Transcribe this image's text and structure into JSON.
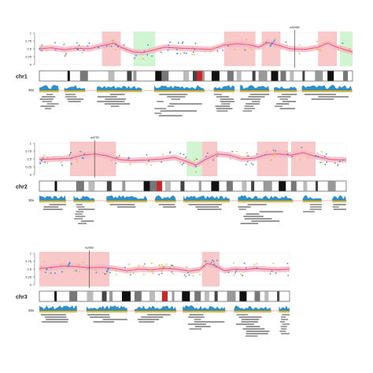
{
  "chart_data": [
    {
      "type": "line",
      "chromosome": "chr1",
      "ylim": [
        0,
        1
      ],
      "y_ticks": [
        "0",
        "0.25",
        "0.5",
        "0.75",
        "1"
      ],
      "marker": {
        "label": "rs50980",
        "x": 0.815
      },
      "gain_regions": [
        [
          0.2,
          0.26
        ],
        [
          0.59,
          0.69
        ],
        [
          0.71,
          0.77
        ],
        [
          0.89,
          0.95
        ]
      ],
      "loss_regions": [
        [
          0.3,
          0.37
        ],
        [
          0.96,
          1.0
        ]
      ],
      "trend": [
        [
          0.0,
          0.5
        ],
        [
          0.04,
          0.53
        ],
        [
          0.08,
          0.47
        ],
        [
          0.12,
          0.52
        ],
        [
          0.16,
          0.5
        ],
        [
          0.2,
          0.6
        ],
        [
          0.24,
          0.68
        ],
        [
          0.26,
          0.55
        ],
        [
          0.3,
          0.4
        ],
        [
          0.33,
          0.38
        ],
        [
          0.36,
          0.45
        ],
        [
          0.4,
          0.55
        ],
        [
          0.45,
          0.52
        ],
        [
          0.5,
          0.5
        ],
        [
          0.55,
          0.48
        ],
        [
          0.59,
          0.62
        ],
        [
          0.63,
          0.66
        ],
        [
          0.67,
          0.63
        ],
        [
          0.7,
          0.55
        ],
        [
          0.73,
          0.7
        ],
        [
          0.76,
          0.62
        ],
        [
          0.8,
          0.5
        ],
        [
          0.85,
          0.48
        ],
        [
          0.89,
          0.55
        ],
        [
          0.92,
          0.68
        ],
        [
          0.95,
          0.55
        ],
        [
          1.0,
          0.4
        ]
      ],
      "cytoband_x": [
        0.09,
        0.13,
        0.22,
        0.28,
        0.3,
        0.37,
        0.39,
        0.46,
        0.49,
        0.52,
        0.55,
        0.6,
        0.63,
        0.68,
        0.7,
        0.74,
        0.77,
        0.8,
        0.84,
        0.88,
        0.92,
        0.97
      ],
      "centromere": 0.51,
      "coverage_label": "30x"
    },
    {
      "type": "line",
      "chromosome": "chr2",
      "ylim": [
        0,
        1
      ],
      "y_ticks": [
        "0",
        "0.25",
        "0.5",
        "0.75",
        "1"
      ],
      "marker": {
        "label": "rs6735",
        "x": 0.18
      },
      "gain_regions": [
        [
          0.1,
          0.25
        ],
        [
          0.53,
          0.58
        ],
        [
          0.71,
          0.81
        ],
        [
          0.82,
          0.9
        ]
      ],
      "loss_regions": [
        [
          0.48,
          0.53
        ]
      ],
      "trend": [
        [
          0.0,
          0.48
        ],
        [
          0.05,
          0.5
        ],
        [
          0.1,
          0.52
        ],
        [
          0.14,
          0.62
        ],
        [
          0.18,
          0.66
        ],
        [
          0.22,
          0.6
        ],
        [
          0.26,
          0.48
        ],
        [
          0.3,
          0.45
        ],
        [
          0.35,
          0.47
        ],
        [
          0.4,
          0.5
        ],
        [
          0.44,
          0.55
        ],
        [
          0.48,
          0.42
        ],
        [
          0.51,
          0.3
        ],
        [
          0.54,
          0.48
        ],
        [
          0.58,
          0.66
        ],
        [
          0.62,
          0.62
        ],
        [
          0.66,
          0.5
        ],
        [
          0.7,
          0.52
        ],
        [
          0.74,
          0.64
        ],
        [
          0.78,
          0.66
        ],
        [
          0.82,
          0.62
        ],
        [
          0.86,
          0.7
        ],
        [
          0.9,
          0.58
        ],
        [
          0.95,
          0.48
        ],
        [
          1.0,
          0.47
        ]
      ],
      "cytoband_x": [
        0.05,
        0.12,
        0.16,
        0.22,
        0.27,
        0.34,
        0.36,
        0.41,
        0.46,
        0.52,
        0.56,
        0.61,
        0.66,
        0.69,
        0.73,
        0.78,
        0.82,
        0.86,
        0.9,
        0.94
      ],
      "centromere": 0.39,
      "coverage_label": "30x"
    },
    {
      "type": "line",
      "chromosome": "chr3",
      "ylim": [
        0,
        1
      ],
      "y_ticks": [
        "0",
        "0.25",
        "0.5",
        "0.75",
        "1"
      ],
      "marker": {
        "label": "rs2960",
        "x": 0.2
      },
      "gain_regions": [
        [
          0.0,
          0.28
        ],
        [
          0.65,
          0.72
        ]
      ],
      "loss_regions": [],
      "trend": [
        [
          0.0,
          0.52
        ],
        [
          0.05,
          0.56
        ],
        [
          0.1,
          0.6
        ],
        [
          0.15,
          0.58
        ],
        [
          0.2,
          0.54
        ],
        [
          0.25,
          0.56
        ],
        [
          0.3,
          0.52
        ],
        [
          0.35,
          0.45
        ],
        [
          0.4,
          0.5
        ],
        [
          0.45,
          0.48
        ],
        [
          0.5,
          0.52
        ],
        [
          0.55,
          0.5
        ],
        [
          0.6,
          0.44
        ],
        [
          0.64,
          0.48
        ],
        [
          0.67,
          0.68
        ],
        [
          0.7,
          0.62
        ],
        [
          0.74,
          0.45
        ],
        [
          0.78,
          0.5
        ],
        [
          0.82,
          0.48
        ],
        [
          0.86,
          0.52
        ],
        [
          0.9,
          0.5
        ],
        [
          0.95,
          0.48
        ],
        [
          1.0,
          0.5
        ]
      ],
      "cytoband_x": [
        0.06,
        0.12,
        0.19,
        0.25,
        0.28,
        0.33,
        0.38,
        0.44,
        0.49,
        0.53,
        0.57,
        0.62,
        0.66,
        0.7,
        0.75,
        0.8,
        0.86,
        0.9,
        0.95
      ],
      "centromere": 0.5,
      "coverage_label": "30x"
    }
  ],
  "colors": {
    "gain": "#f7b6b6",
    "loss": "#c6f2c6",
    "trend": "#e8557a",
    "band": "#f4b9c8",
    "point_a": "#3a86d4",
    "point_b": "#f2b233",
    "coverage_top": "#2e8fc9",
    "coverage_bottom": "#e8b530",
    "centromere": "#c8282a"
  }
}
